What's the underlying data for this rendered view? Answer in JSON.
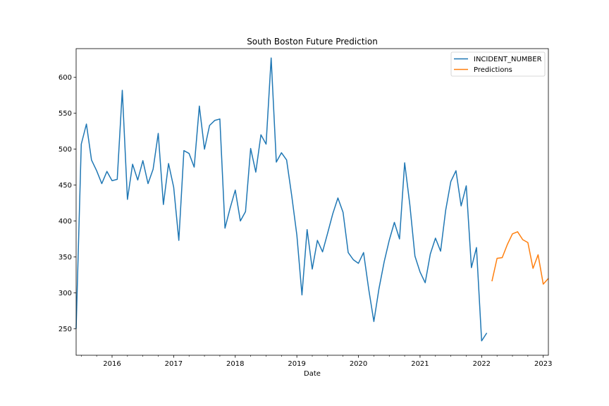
{
  "chart_data": {
    "type": "line",
    "title": "South Boston Future Prediction",
    "xlabel": "Date",
    "ylabel": "",
    "xlim": [
      "2015-06-01",
      "2023-02-01"
    ],
    "ylim": [
      213,
      640
    ],
    "x_ticks": [
      "2016",
      "2017",
      "2018",
      "2019",
      "2020",
      "2021",
      "2022",
      "2023"
    ],
    "y_ticks": [
      250,
      300,
      350,
      400,
      450,
      500,
      550,
      600
    ],
    "legend_position": "top-right",
    "grid": false,
    "series": [
      {
        "name": "INCIDENT_NUMBER",
        "color": "#1f77b4",
        "x": [
          "2015-06",
          "2015-07",
          "2015-08",
          "2015-09",
          "2015-10",
          "2015-11",
          "2015-12",
          "2016-01",
          "2016-02",
          "2016-03",
          "2016-04",
          "2016-05",
          "2016-06",
          "2016-07",
          "2016-08",
          "2016-09",
          "2016-10",
          "2016-11",
          "2016-12",
          "2017-01",
          "2017-02",
          "2017-03",
          "2017-04",
          "2017-05",
          "2017-06",
          "2017-07",
          "2017-08",
          "2017-09",
          "2017-10",
          "2017-11",
          "2017-12",
          "2018-01",
          "2018-02",
          "2018-03",
          "2018-04",
          "2018-05",
          "2018-06",
          "2018-07",
          "2018-08",
          "2018-09",
          "2018-10",
          "2018-11",
          "2018-12",
          "2019-01",
          "2019-02",
          "2019-03",
          "2019-04",
          "2019-05",
          "2019-06",
          "2019-07",
          "2019-08",
          "2019-09",
          "2019-10",
          "2019-11",
          "2019-12",
          "2020-01",
          "2020-02",
          "2020-03",
          "2020-04",
          "2020-05",
          "2020-06",
          "2020-07",
          "2020-08",
          "2020-09",
          "2020-10",
          "2020-11",
          "2020-12",
          "2021-01",
          "2021-02",
          "2021-03",
          "2021-04",
          "2021-05",
          "2021-06",
          "2021-07",
          "2021-08",
          "2021-09",
          "2021-10",
          "2021-11",
          "2021-12",
          "2022-01",
          "2022-02"
        ],
        "values": [
          250,
          507,
          535,
          485,
          470,
          452,
          469,
          456,
          458,
          582,
          430,
          479,
          457,
          484,
          452,
          472,
          522,
          423,
          480,
          447,
          373,
          498,
          494,
          475,
          560,
          500,
          533,
          540,
          542,
          390,
          418,
          443,
          400,
          413,
          501,
          468,
          520,
          507,
          627,
          482,
          495,
          485,
          435,
          380,
          297,
          388,
          333,
          373,
          357,
          383,
          410,
          432,
          412,
          356,
          346,
          341,
          356,
          305,
          260,
          306,
          343,
          373,
          398,
          375,
          481,
          423,
          351,
          329,
          314,
          354,
          376,
          358,
          415,
          455,
          470,
          421,
          449,
          335,
          363,
          233,
          244
        ]
      },
      {
        "name": "Predictions",
        "color": "#ff7f0e",
        "x": [
          "2022-03",
          "2022-04",
          "2022-05",
          "2022-06",
          "2022-07",
          "2022-08",
          "2022-09",
          "2022-10",
          "2022-11",
          "2022-12",
          "2023-01",
          "2023-02"
        ],
        "values": [
          316,
          348,
          349,
          367,
          382,
          385,
          374,
          370,
          334,
          353,
          312,
          320
        ]
      }
    ]
  }
}
